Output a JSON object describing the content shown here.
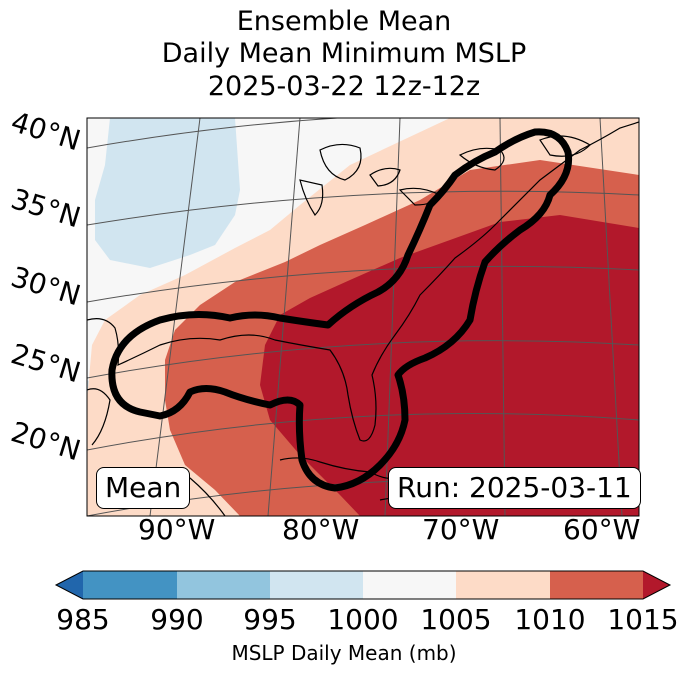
{
  "title": {
    "line1": "Ensemble Mean",
    "line2": "Daily Mean Minimum MSLP",
    "line3": "2025-03-22 12z-12z"
  },
  "map": {
    "lat_labels": [
      "40°N",
      "35°N",
      "30°N",
      "25°N",
      "20°N"
    ],
    "lon_labels": [
      "90°W",
      "80°W",
      "70°W",
      "60°W"
    ],
    "mean_label": "Mean",
    "run_label": "Run: 2025-03-11",
    "contour_color": "#000000"
  },
  "colorbar": {
    "ticks": [
      "985",
      "990",
      "995",
      "1000",
      "1005",
      "1010",
      "1015"
    ],
    "label": "MSLP Daily Mean (mb)",
    "colors": {
      "under": "#2166ac",
      "c985_990": "#4393c3",
      "c990_995": "#92c5de",
      "c995_1000": "#d1e5f0",
      "c1000_1005": "#f7f7f7",
      "c1005_1010": "#fddbc7",
      "c1010_1015": "#d6604d",
      "over": "#b2182b"
    }
  }
}
